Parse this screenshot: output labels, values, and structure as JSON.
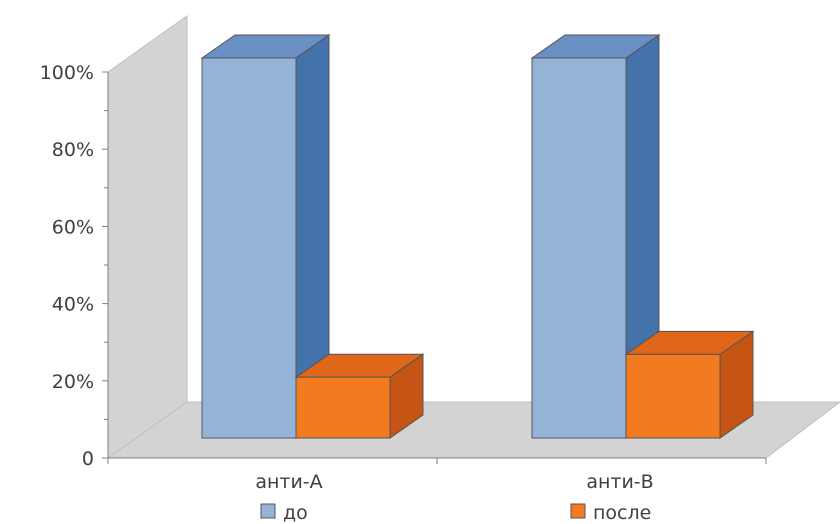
{
  "chart_data": {
    "type": "bar",
    "title": "",
    "xlabel": "",
    "ylabel": "",
    "categories": [
      "анти-А",
      "анти-В"
    ],
    "series": [
      {
        "name": "до",
        "values": [
          100,
          100
        ],
        "color": "#95B3D7",
        "side_color": "#4472AA"
      },
      {
        "name": "после",
        "values": [
          16,
          22
        ],
        "color": "#F47A20",
        "side_color": "#C55415"
      }
    ],
    "y_ticks": [
      "0",
      "20%",
      "40%",
      "60%",
      "80%",
      "100%"
    ],
    "ylim": [
      0,
      100
    ],
    "legend_position": "bottom",
    "grid": false,
    "three_d": true
  }
}
